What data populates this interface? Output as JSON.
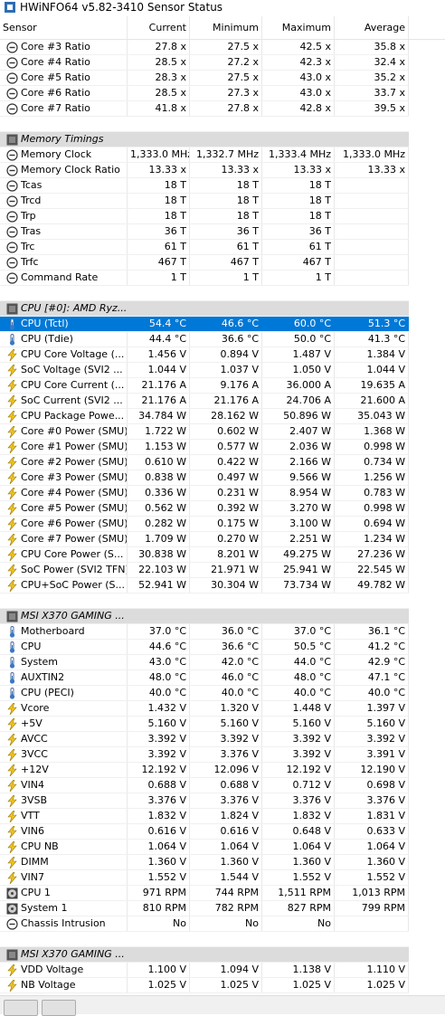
{
  "header": {
    "title": "HWiNFO64 v5.82-3410 Sensor Status"
  },
  "columns": [
    "Sensor",
    "Current",
    "Minimum",
    "Maximum",
    "Average"
  ],
  "sections": [
    {
      "rows": [
        [
          "Core #3 Ratio",
          "27.8 x",
          "27.5 x",
          "42.5 x",
          "35.8 x"
        ],
        [
          "Core #4 Ratio",
          "28.5 x",
          "27.2 x",
          "42.3 x",
          "32.4 x"
        ],
        [
          "Core #5 Ratio",
          "28.3 x",
          "27.5 x",
          "43.0 x",
          "35.2 x"
        ],
        [
          "Core #6 Ratio",
          "28.5 x",
          "27.3 x",
          "43.0 x",
          "33.7 x"
        ],
        [
          "Core #7 Ratio",
          "41.8 x",
          "27.8 x",
          "42.8 x",
          "39.5 x"
        ]
      ]
    },
    {
      "title": "Memory Timings",
      "rows": [
        [
          "Memory Clock",
          "1,333.0 MHz",
          "1,332.7 MHz",
          "1,333.4 MHz",
          "1,333.0 MHz"
        ],
        [
          "Memory Clock Ratio",
          "13.33 x",
          "13.33 x",
          "13.33 x",
          "13.33 x"
        ],
        [
          "Tcas",
          "18 T",
          "18 T",
          "18 T"
        ],
        [
          "Trcd",
          "18 T",
          "18 T",
          "18 T"
        ],
        [
          "Trp",
          "18 T",
          "18 T",
          "18 T"
        ],
        [
          "Tras",
          "36 T",
          "36 T",
          "36 T"
        ],
        [
          "Trc",
          "61 T",
          "61 T",
          "61 T"
        ],
        [
          "Trfc",
          "467 T",
          "467 T",
          "467 T"
        ],
        [
          "Command Rate",
          "1 T",
          "1 T",
          "1 T"
        ]
      ]
    },
    {
      "title": "CPU [#0]: AMD Ryz...",
      "rows": [
        [
          "CPU (Tctl)",
          "54.4 °C",
          "46.6 °C",
          "60.0 °C",
          "51.3 °C"
        ],
        [
          "CPU (Tdie)",
          "44.4 °C",
          "36.6 °C",
          "50.0 °C",
          "41.3 °C"
        ],
        [
          "CPU Core Voltage (...",
          "1.456 V",
          "0.894 V",
          "1.487 V",
          "1.384 V"
        ],
        [
          "SoC Voltage (SVI2 ...",
          "1.044 V",
          "1.037 V",
          "1.050 V",
          "1.044 V"
        ],
        [
          "CPU Core Current (...",
          "21.176 A",
          "9.176 A",
          "36.000 A",
          "19.635 A"
        ],
        [
          "SoC Current (SVI2 ...",
          "21.176 A",
          "21.176 A",
          "24.706 A",
          "21.600 A"
        ],
        [
          "CPU Package Powe...",
          "34.784 W",
          "28.162 W",
          "50.896 W",
          "35.043 W"
        ],
        [
          "Core #0 Power (SMU)",
          "1.722 W",
          "0.602 W",
          "2.407 W",
          "1.368 W"
        ],
        [
          "Core #1 Power (SMU)",
          "1.153 W",
          "0.577 W",
          "2.036 W",
          "0.998 W"
        ],
        [
          "Core #2 Power (SMU)",
          "0.610 W",
          "0.422 W",
          "2.166 W",
          "0.734 W"
        ],
        [
          "Core #3 Power (SMU)",
          "0.838 W",
          "0.497 W",
          "9.566 W",
          "1.256 W"
        ],
        [
          "Core #4 Power (SMU)",
          "0.336 W",
          "0.231 W",
          "8.954 W",
          "0.783 W"
        ],
        [
          "Core #5 Power (SMU)",
          "0.562 W",
          "0.392 W",
          "3.270 W",
          "0.998 W"
        ],
        [
          "Core #6 Power (SMU)",
          "0.282 W",
          "0.175 W",
          "3.100 W",
          "0.694 W"
        ],
        [
          "Core #7 Power (SMU)",
          "1.709 W",
          "0.270 W",
          "2.251 W",
          "1.234 W"
        ],
        [
          "CPU Core Power (S...",
          "30.838 W",
          "8.201 W",
          "49.275 W",
          "27.236 W"
        ],
        [
          "SoC Power (SVI2 TFN)",
          "22.103 W",
          "21.971 W",
          "25.941 W",
          "22.545 W"
        ],
        [
          "CPU+SoC Power (S...",
          "52.941 W",
          "30.304 W",
          "73.734 W",
          "49.782 W"
        ]
      ]
    },
    {
      "title": "MSI X370 GAMING ...",
      "rows": [
        [
          "Motherboard",
          "37.0 °C",
          "36.0 °C",
          "37.0 °C",
          "36.1 °C"
        ],
        [
          "CPU",
          "44.6 °C",
          "36.6 °C",
          "50.5 °C",
          "41.2 °C"
        ],
        [
          "System",
          "43.0 °C",
          "42.0 °C",
          "44.0 °C",
          "42.9 °C"
        ],
        [
          "AUXTIN2",
          "48.0 °C",
          "46.0 °C",
          "48.0 °C",
          "47.1 °C"
        ],
        [
          "CPU (PECI)",
          "40.0 °C",
          "40.0 °C",
          "40.0 °C",
          "40.0 °C"
        ],
        [
          "Vcore",
          "1.432 V",
          "1.320 V",
          "1.448 V",
          "1.397 V"
        ],
        [
          "+5V",
          "5.160 V",
          "5.160 V",
          "5.160 V",
          "5.160 V"
        ],
        [
          "AVCC",
          "3.392 V",
          "3.392 V",
          "3.392 V",
          "3.392 V"
        ],
        [
          "3VCC",
          "3.392 V",
          "3.376 V",
          "3.392 V",
          "3.391 V"
        ],
        [
          "+12V",
          "12.192 V",
          "12.096 V",
          "12.192 V",
          "12.190 V"
        ],
        [
          "VIN4",
          "0.688 V",
          "0.688 V",
          "0.712 V",
          "0.698 V"
        ],
        [
          "3VSB",
          "3.376 V",
          "3.376 V",
          "3.376 V",
          "3.376 V"
        ],
        [
          "VTT",
          "1.832 V",
          "1.824 V",
          "1.832 V",
          "1.831 V"
        ],
        [
          "VIN6",
          "0.616 V",
          "0.616 V",
          "0.648 V",
          "0.633 V"
        ],
        [
          "CPU NB",
          "1.064 V",
          "1.064 V",
          "1.064 V",
          "1.064 V"
        ],
        [
          "DIMM",
          "1.360 V",
          "1.360 V",
          "1.360 V",
          "1.360 V"
        ],
        [
          "VIN7",
          "1.552 V",
          "1.544 V",
          "1.552 V",
          "1.552 V"
        ],
        [
          "CPU 1",
          "971 RPM",
          "744 RPM",
          "1,511 RPM",
          "1,013 RPM"
        ],
        [
          "System 1",
          "810 RPM",
          "782 RPM",
          "827 RPM",
          "799 RPM"
        ],
        [
          "Chassis Intrusion",
          "No",
          "No",
          "No"
        ]
      ]
    },
    {
      "title": "MSI X370 GAMING ...",
      "rows": [
        [
          "VDD Voltage",
          "1.100 V",
          "1.094 V",
          "1.138 V",
          "1.110 V"
        ],
        [
          "NB Voltage",
          "1.025 V",
          "1.025 V",
          "1.025 V",
          "1.025 V"
        ]
      ]
    }
  ]
}
